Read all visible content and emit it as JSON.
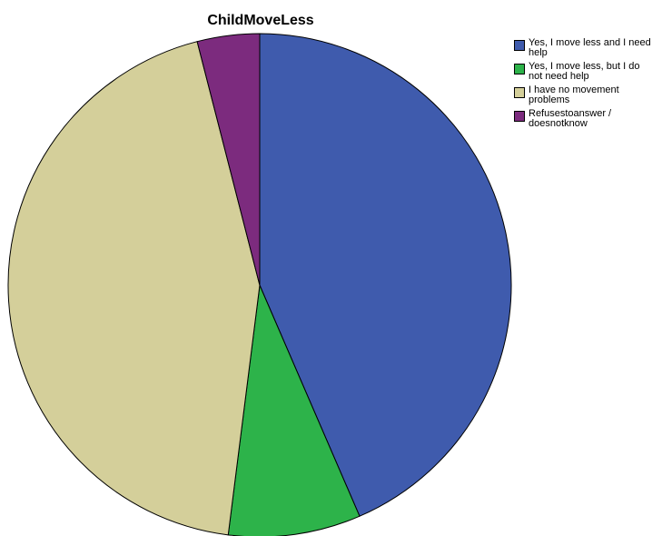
{
  "chart_data": {
    "type": "pie",
    "title": "ChildMoveLess",
    "categories": [
      "Yes, I move less and I need help",
      "Yes, I move less, but I do not need help",
      "I have no movement problems",
      "Refusestoanswer / doesnotknow"
    ],
    "legend_labels": [
      "Yes, I move less and I need\nhelp",
      "Yes, I move less, but I do\nnot need help",
      "I have no movement\nproblems",
      "Refusestoanswer /\ndoesnotknow"
    ],
    "values": [
      43.5,
      8.5,
      44.0,
      4.0
    ],
    "colors": [
      "#3f5bad",
      "#2db34a",
      "#d4cf9a",
      "#7c2b7e"
    ],
    "start_angle_deg": 0,
    "direction": "clockwise",
    "legend_position": "top-right"
  }
}
